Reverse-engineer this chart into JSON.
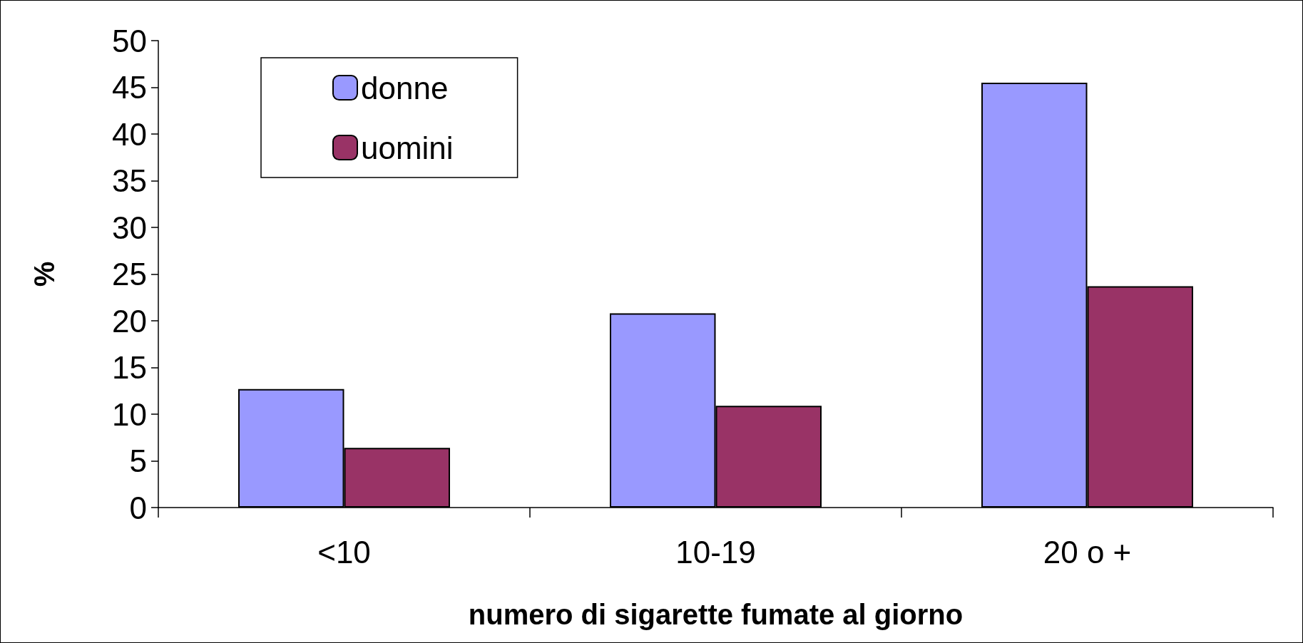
{
  "chart_data": {
    "type": "bar",
    "xlabel": "numero di sigarette fumate al giorno",
    "ylabel": "%",
    "categories": [
      "<10",
      "10-19",
      "20 o +"
    ],
    "series": [
      {
        "name": "donne",
        "color": "#9999ff",
        "values": [
          12.7,
          20.8,
          45.5
        ]
      },
      {
        "name": "uomini",
        "color": "#993366",
        "values": [
          6.4,
          10.9,
          23.7
        ]
      }
    ],
    "ylim": [
      0,
      50
    ],
    "yticks": [
      0,
      5,
      10,
      15,
      20,
      25,
      30,
      35,
      40,
      45,
      50
    ],
    "grid": false,
    "legend": "top left"
  }
}
